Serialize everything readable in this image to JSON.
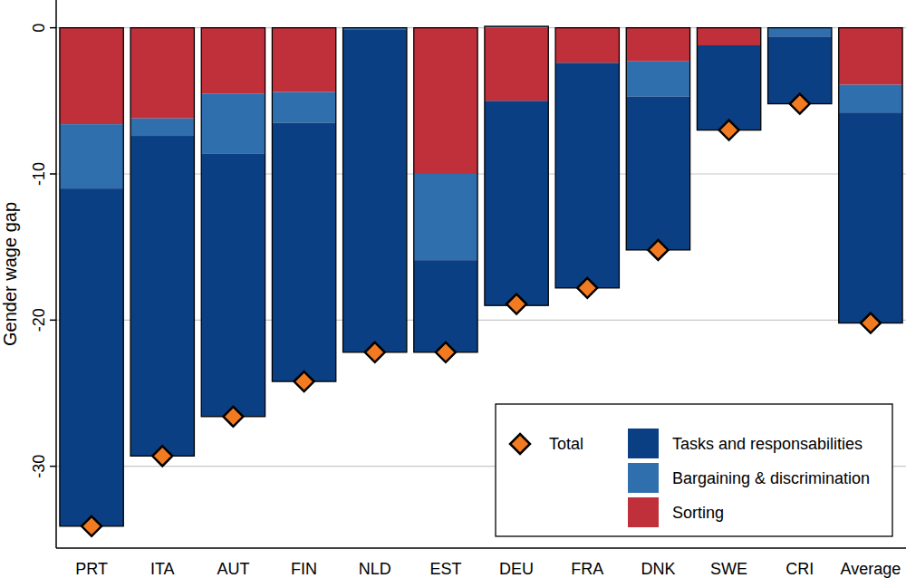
{
  "chart_data": {
    "type": "bar",
    "stacked": true,
    "y_label": "Gender wage gap",
    "categories": [
      "PRT",
      "ITA",
      "AUT",
      "FIN",
      "NLD",
      "EST",
      "DEU",
      "FRA",
      "DNK",
      "SWE",
      "CRI",
      "Average"
    ],
    "series": [
      {
        "name": "Total",
        "type": "scatter",
        "marker": "diamond",
        "color": "#f27b21",
        "values": [
          -34.1,
          -29.3,
          -26.6,
          -24.2,
          -22.2,
          -22.2,
          -18.9,
          -17.8,
          -15.2,
          -7.0,
          -5.2,
          -20.2
        ]
      },
      {
        "name": "Tasks and responsabilities",
        "type": "bar",
        "color": "#0b3f84",
        "values": [
          -23.1,
          -21.9,
          -18.0,
          -17.7,
          -22.1,
          -6.3,
          -14.0,
          -15.4,
          -10.5,
          -5.8,
          -4.6,
          -14.4
        ]
      },
      {
        "name": "Bargaining & discrimination",
        "type": "bar",
        "color": "#2f6fae",
        "values": [
          -4.4,
          -1.2,
          -4.1,
          -2.1,
          -0.1,
          -5.9,
          0.1,
          0.0,
          -2.4,
          0.0,
          -0.6,
          -1.9
        ]
      },
      {
        "name": "Sorting",
        "type": "bar",
        "color": "#c0303a",
        "values": [
          -6.6,
          -6.2,
          -4.5,
          -4.4,
          0.0,
          -10.0,
          -5.0,
          -2.4,
          -2.3,
          -1.2,
          0.0,
          -3.9
        ]
      }
    ],
    "ylim": [
      -35.6,
      1.9
    ],
    "yticks": [
      -30,
      -20,
      -10,
      0
    ],
    "grid": true,
    "legend": "lower right"
  }
}
